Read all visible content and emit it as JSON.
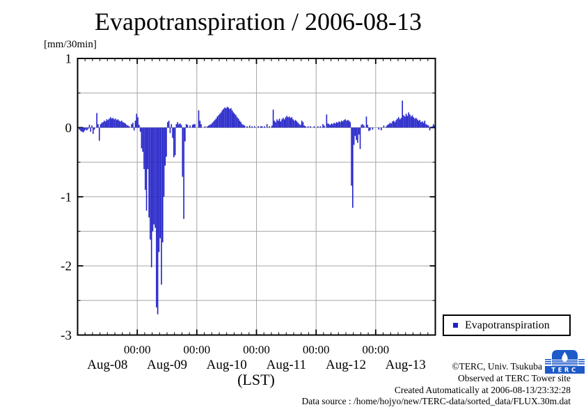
{
  "title": "Evapotranspiration / 2006-08-13",
  "y_axis": {
    "unit_label": "[mm/30min]",
    "tick_labels": [
      "1",
      "0",
      "-1",
      "-2",
      "-3"
    ],
    "tick_values": [
      1,
      0,
      -1,
      -2,
      -3
    ],
    "minor_tick_values": [
      0.5,
      -0.5,
      -1.5,
      -2.5
    ]
  },
  "x_axis": {
    "major_tick_label": "00:00",
    "axis_label": "(LST)"
  },
  "legend": {
    "label": "Evapotranspiration",
    "marker_color": "#2121C8"
  },
  "annotations": {
    "copyright": "©TERC, Univ. Tsukuba",
    "observed": "Observed at TERC Tower site",
    "created": "Created Automatically at 2006-08-13/23:32:28",
    "data_source": "Data source : /home/hojyo/new/TERC-data/sorted_data/FLUX.30m.dat"
  },
  "logo": {
    "text": "TERC",
    "color": "#1E5AC8"
  },
  "chart_data": {
    "type": "bar",
    "title": "Evapotranspiration / 2006-08-13",
    "ylabel": "[mm/30min]",
    "xlabel": "(LST)",
    "ylim": [
      -3,
      1
    ],
    "interval_minutes": 30,
    "bar_color": "#2121C8",
    "grid": "on",
    "y_gridlines": [
      0.5,
      0,
      -0.5,
      -1,
      -1.5,
      -2,
      -2.5
    ],
    "days": [
      "Aug-08",
      "Aug-09",
      "Aug-10",
      "Aug-11",
      "Aug-12",
      "Aug-13"
    ],
    "values": [
      0,
      -0.03,
      -0.05,
      -0.06,
      -0.07,
      -0.05,
      -0.03,
      -0.04,
      -0.02,
      0.04,
      -0.06,
      0.03,
      -0.09,
      -0.03,
      0,
      0.21,
      0.05,
      -0.19,
      0.05,
      0.07,
      0.08,
      0.1,
      0.09,
      0.12,
      0.11,
      0.13,
      0.15,
      0.13,
      0.14,
      0.12,
      0.13,
      0.11,
      0.12,
      0.1,
      0.09,
      0.1,
      0.08,
      0.07,
      0.06,
      0.04,
      0.03,
      0.02,
      0,
      0.05,
      0.07,
      -0.04,
      0.1,
      0.2,
      0.15,
      0.04,
      -0.06,
      -0.3,
      -0.35,
      -0.6,
      -0.9,
      -1.2,
      -0.6,
      -1.3,
      -1.62,
      -2.02,
      -1.5,
      -1.4,
      -1.45,
      -2.6,
      -2.7,
      -1.8,
      -1.6,
      -2.27,
      -1.66,
      -1.0,
      -0.55,
      -0.42,
      0.08,
      0.1,
      -0.08,
      0.05,
      -0.15,
      -0.43,
      -0.4,
      0.05,
      0.08,
      0.05,
      0.06,
      0.04,
      -0.71,
      -1.32,
      -0.2,
      0.05,
      0.04,
      0,
      0.03,
      0,
      0.04,
      0.05,
      0.05,
      0,
      0,
      0.25,
      0.1,
      0.05,
      0,
      0,
      0.02,
      0,
      0.02,
      0.03,
      0.04,
      0.05,
      0.07,
      0.09,
      0.11,
      0.13,
      0.16,
      0.18,
      0.2,
      0.22,
      0.25,
      0.27,
      0.29,
      0.28,
      0.3,
      0.29,
      0.27,
      0.28,
      0.25,
      0.22,
      0.2,
      0.18,
      0.15,
      0.13,
      0.1,
      0.08,
      0.05,
      0.04,
      0.03,
      0,
      0.02,
      0,
      0.03,
      0,
      0.02,
      0,
      0.02,
      0,
      0,
      0.02,
      0,
      0.02,
      0.02,
      0,
      0.02,
      0,
      0.05,
      0,
      0.02,
      0,
      0.03,
      0.26,
      0.1,
      0.08,
      0.12,
      0.1,
      0.13,
      0.09,
      0.12,
      0.14,
      0.12,
      0.15,
      0.17,
      0.15,
      0.16,
      0.14,
      0.15,
      0.12,
      0.1,
      0.11,
      0.09,
      0.07,
      0.05,
      0.04,
      0.1,
      0.08,
      0.03,
      0.02,
      0,
      0.02,
      0,
      0.02,
      0,
      0,
      0.02,
      0,
      0,
      0.02,
      0,
      0.02,
      0,
      0.05,
      0.03,
      0,
      0.19,
      0.06,
      0.05,
      0.04,
      0.06,
      0.05,
      0.07,
      0.06,
      0.08,
      0.07,
      0.09,
      0.08,
      0.1,
      0.09,
      0.11,
      0.12,
      0.1,
      0.11,
      0.1,
      0.08,
      -0.84,
      -1.16,
      -0.25,
      -0.12,
      -0.18,
      -0.22,
      -0.1,
      -0.31,
      0.04,
      0.05,
      0.03,
      0,
      0.16,
      0.04,
      -0.05,
      -0.04,
      0,
      -0.03,
      0,
      0,
      0,
      0,
      -0.03,
      0,
      -0.04,
      0,
      0.03,
      0,
      0.02,
      0.04,
      0.05,
      0.07,
      0.06,
      0.09,
      0.1,
      0.08,
      0.11,
      0.13,
      0.15,
      0.12,
      0.14,
      0.39,
      0.18,
      0.16,
      0.2,
      0.17,
      0.22,
      0.19,
      0.16,
      0.18,
      0.15,
      0.13,
      0.14,
      0.12,
      0.1,
      0.11,
      0.08,
      0.09,
      0.07,
      0.1,
      0.05,
      0.04,
      0.03,
      -0.04,
      0,
      0.02,
      0.05,
      0.03
    ]
  }
}
